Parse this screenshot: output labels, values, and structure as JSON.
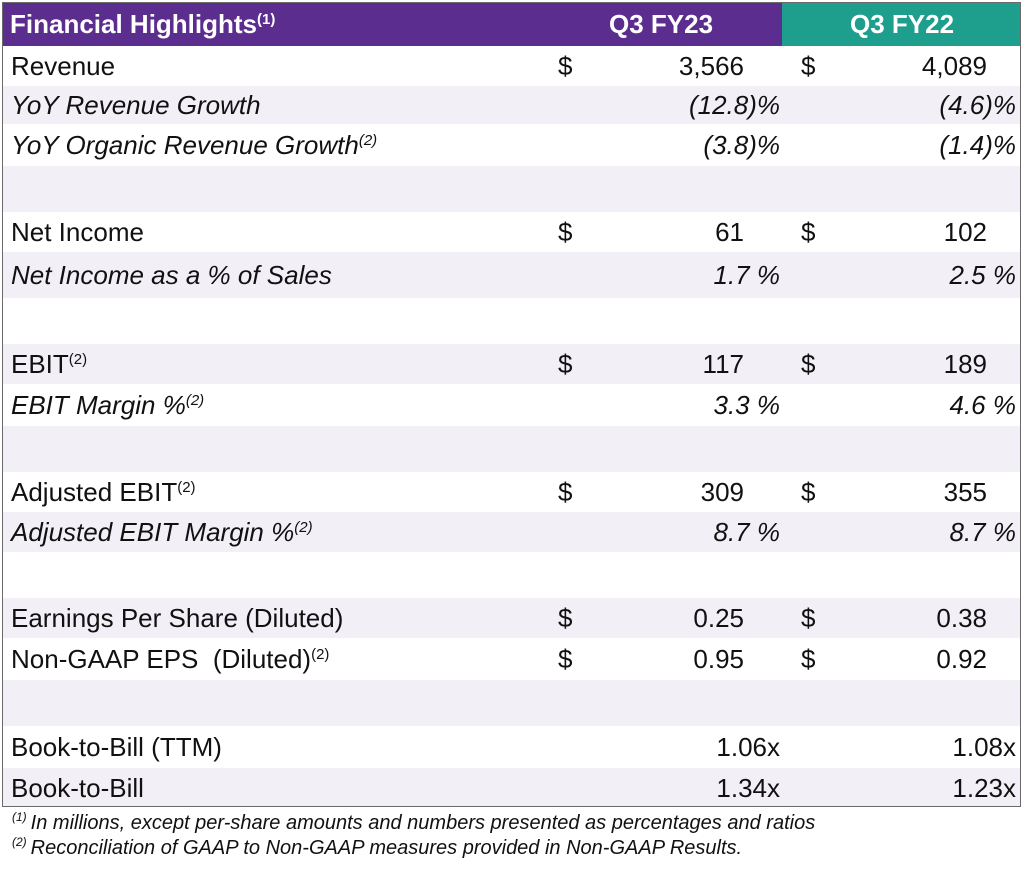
{
  "header": {
    "title": "Financial Highlights",
    "title_note": "(1)",
    "col1": "Q3 FY23",
    "col2": "Q3 FY22",
    "col1_color": "#5b2d8e",
    "col2_color": "#1e9e8d"
  },
  "rows": {
    "revenue": {
      "label": "Revenue",
      "cur1": "$",
      "v1": "3,566",
      "cur2": "$",
      "v2": "4,089"
    },
    "yoy_growth": {
      "label": "YoY Revenue Growth",
      "v1": "(12.8)%",
      "v2": "(4.6)%"
    },
    "yoy_organic": {
      "label": "YoY Organic Revenue Growth",
      "note": "(2)",
      "v1": "(3.8)%",
      "v2": "(1.4)%"
    },
    "net_income": {
      "label": "Net Income",
      "cur1": "$",
      "v1": "61",
      "cur2": "$",
      "v2": "102"
    },
    "ni_pct": {
      "label": "Net Income as a % of Sales",
      "v1": "1.7 %",
      "v2": "2.5 %"
    },
    "ebit": {
      "label": "EBIT",
      "note": "(2)",
      "cur1": "$",
      "v1": "117",
      "cur2": "$",
      "v2": "189"
    },
    "ebit_margin": {
      "label": "EBIT Margin %",
      "note": "(2)",
      "v1": "3.3 %",
      "v2": "4.6 %"
    },
    "adj_ebit": {
      "label": "Adjusted EBIT",
      "note": "(2)",
      "cur1": "$",
      "v1": "309",
      "cur2": "$",
      "v2": "355"
    },
    "adj_ebit_margin": {
      "label": "Adjusted EBIT Margin %",
      "note": "(2)",
      "v1": "8.7 %",
      "v2": "8.7 %"
    },
    "eps": {
      "label": "Earnings Per Share (Diluted)",
      "cur1": "$",
      "v1": "0.25",
      "cur2": "$",
      "v2": "0.38"
    },
    "non_gaap_eps": {
      "label": "Non-GAAP EPS  (Diluted)",
      "note": "(2)",
      "cur1": "$",
      "v1": "0.95",
      "cur2": "$",
      "v2": "0.92"
    },
    "btb_ttm": {
      "label": "Book-to-Bill (TTM)",
      "v1": "1.06x",
      "v2": "1.08x"
    },
    "btb": {
      "label": "Book-to-Bill",
      "v1": "1.34x",
      "v2": "1.23x"
    }
  },
  "footnotes": [
    {
      "mark": "(1)",
      "text": "In millions, except per-share amounts and numbers presented as percentages and ratios"
    },
    {
      "mark": "(2)",
      "text": "Reconciliation of GAAP to Non-GAAP measures provided in Non-GAAP Results."
    }
  ]
}
